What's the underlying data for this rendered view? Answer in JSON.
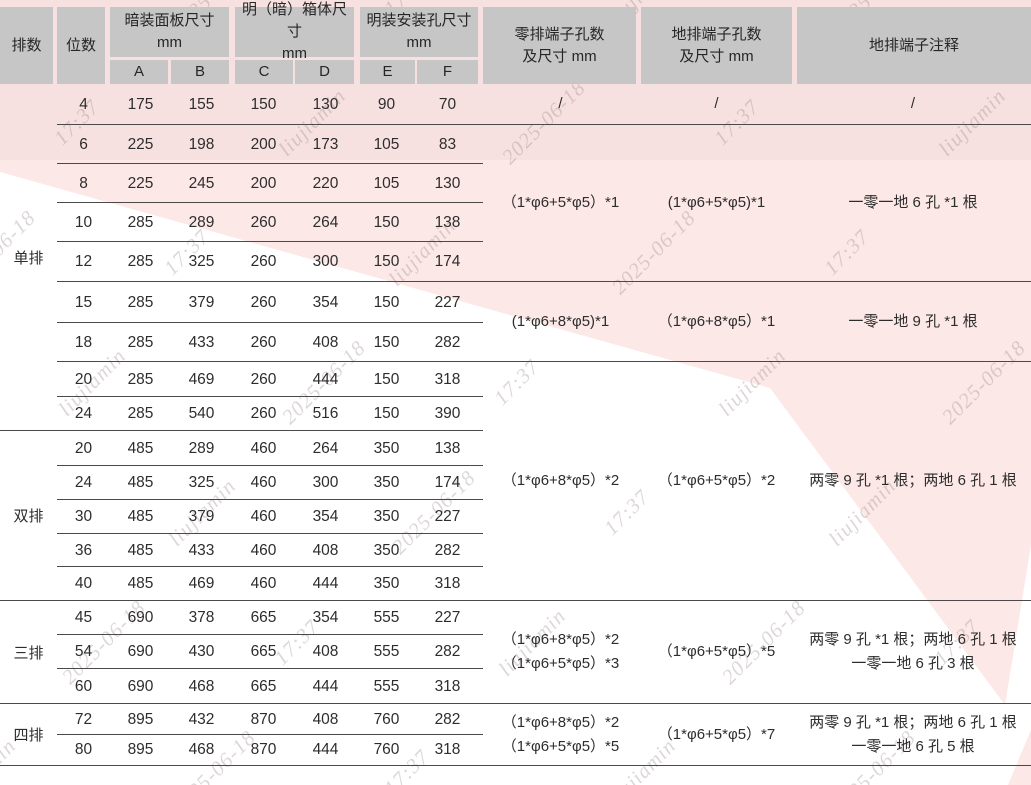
{
  "colors": {
    "pink_top": "#f7e1e0",
    "pink_base": "#fce8e7",
    "header_gray": "#c6c6c6",
    "border": "#4a4a4a",
    "text": "#2d2d2d"
  },
  "watermark": {
    "tokens": [
      "liujiamin",
      "2025-06-18",
      "17:37"
    ]
  },
  "header": {
    "rows_col": "排数",
    "positions_col": "位数",
    "groups": [
      {
        "line1": "暗装面板尺寸",
        "line2": "mm",
        "subs": [
          "A",
          "B"
        ]
      },
      {
        "line1": "明（暗）箱体尺寸",
        "line2": "mm",
        "subs": [
          "C",
          "D"
        ]
      },
      {
        "line1": "明装安装孔尺寸",
        "line2": "mm",
        "subs": [
          "E",
          "F"
        ]
      }
    ],
    "neutral_col": {
      "line1": "零排端子孔数",
      "line2": "及尺寸 mm"
    },
    "ground_col": {
      "line1": "地排端子孔数",
      "line2": "及尺寸 mm"
    },
    "note_col": "地排端子注释"
  },
  "sections": [
    {
      "label": "单排",
      "row_span": 9
    },
    {
      "label": "双排",
      "row_span": 5
    },
    {
      "label": "三排",
      "row_span": 3
    },
    {
      "label": "四排",
      "row_span": 2
    }
  ],
  "rows": [
    {
      "pos": "4",
      "a": "175",
      "b": "155",
      "c": "150",
      "d": "130",
      "e": "90",
      "f": "70"
    },
    {
      "pos": "6",
      "a": "225",
      "b": "198",
      "c": "200",
      "d": "173",
      "e": "105",
      "f": "83"
    },
    {
      "pos": "8",
      "a": "225",
      "b": "245",
      "c": "200",
      "d": "220",
      "e": "105",
      "f": "130"
    },
    {
      "pos": "10",
      "a": "285",
      "b": "289",
      "c": "260",
      "d": "264",
      "e": "150",
      "f": "138"
    },
    {
      "pos": "12",
      "a": "285",
      "b": "325",
      "c": "260",
      "d": "300",
      "e": "150",
      "f": "174"
    },
    {
      "pos": "15",
      "a": "285",
      "b": "379",
      "c": "260",
      "d": "354",
      "e": "150",
      "f": "227"
    },
    {
      "pos": "18",
      "a": "285",
      "b": "433",
      "c": "260",
      "d": "408",
      "e": "150",
      "f": "282"
    },
    {
      "pos": "20",
      "a": "285",
      "b": "469",
      "c": "260",
      "d": "444",
      "e": "150",
      "f": "318"
    },
    {
      "pos": "24",
      "a": "285",
      "b": "540",
      "c": "260",
      "d": "516",
      "e": "150",
      "f": "390"
    },
    {
      "pos": "20",
      "a": "485",
      "b": "289",
      "c": "460",
      "d": "264",
      "e": "350",
      "f": "138"
    },
    {
      "pos": "24",
      "a": "485",
      "b": "325",
      "c": "460",
      "d": "300",
      "e": "350",
      "f": "174"
    },
    {
      "pos": "30",
      "a": "485",
      "b": "379",
      "c": "460",
      "d": "354",
      "e": "350",
      "f": "227"
    },
    {
      "pos": "36",
      "a": "485",
      "b": "433",
      "c": "460",
      "d": "408",
      "e": "350",
      "f": "282"
    },
    {
      "pos": "40",
      "a": "485",
      "b": "469",
      "c": "460",
      "d": "444",
      "e": "350",
      "f": "318"
    },
    {
      "pos": "45",
      "a": "690",
      "b": "378",
      "c": "665",
      "d": "354",
      "e": "555",
      "f": "227"
    },
    {
      "pos": "54",
      "a": "690",
      "b": "430",
      "c": "665",
      "d": "408",
      "e": "555",
      "f": "282"
    },
    {
      "pos": "60",
      "a": "690",
      "b": "468",
      "c": "665",
      "d": "444",
      "e": "555",
      "f": "318"
    },
    {
      "pos": "72",
      "a": "895",
      "b": "432",
      "c": "870",
      "d": "408",
      "e": "760",
      "f": "282"
    },
    {
      "pos": "80",
      "a": "895",
      "b": "468",
      "c": "870",
      "d": "444",
      "e": "760",
      "f": "318"
    }
  ],
  "terminal_groups": [
    {
      "row_start": 1,
      "row_span": 1,
      "neutral": [
        "/"
      ],
      "ground": [
        "/"
      ],
      "note": [
        "/"
      ]
    },
    {
      "row_start": 2,
      "row_span": 4,
      "neutral": [
        "（1*φ6+5*φ5）*1"
      ],
      "ground": [
        "(1*φ6+5*φ5)*1"
      ],
      "note": [
        "一零一地 6 孔 *1 根"
      ]
    },
    {
      "row_start": 6,
      "row_span": 2,
      "neutral": [
        "(1*φ6+8*φ5)*1"
      ],
      "ground": [
        "（1*φ6+8*φ5）*1"
      ],
      "note": [
        "一零一地 9 孔 *1 根"
      ]
    },
    {
      "row_start": 8,
      "row_span": 7,
      "neutral": [
        "（1*φ6+8*φ5）*2"
      ],
      "ground": [
        "（1*φ6+5*φ5）*2"
      ],
      "note": [
        "两零 9 孔 *1 根；两地 6 孔 1 根"
      ]
    },
    {
      "row_start": 15,
      "row_span": 3,
      "neutral": [
        "（1*φ6+8*φ5）*2",
        "（1*φ6+5*φ5）*3"
      ],
      "ground": [
        "（1*φ6+5*φ5）*5"
      ],
      "note": [
        "两零 9 孔 *1 根；两地 6 孔 1 根",
        "一零一地 6 孔 3 根"
      ]
    },
    {
      "row_start": 18,
      "row_span": 2,
      "neutral": [
        "（1*φ6+8*φ5）*2",
        "（1*φ6+5*φ5）*5"
      ],
      "ground": [
        "（1*φ6+5*φ5）*7"
      ],
      "note": [
        "两零 9 孔 *1 根；两地 6 孔 1 根",
        "一零一地 6 孔 5 根"
      ]
    }
  ]
}
